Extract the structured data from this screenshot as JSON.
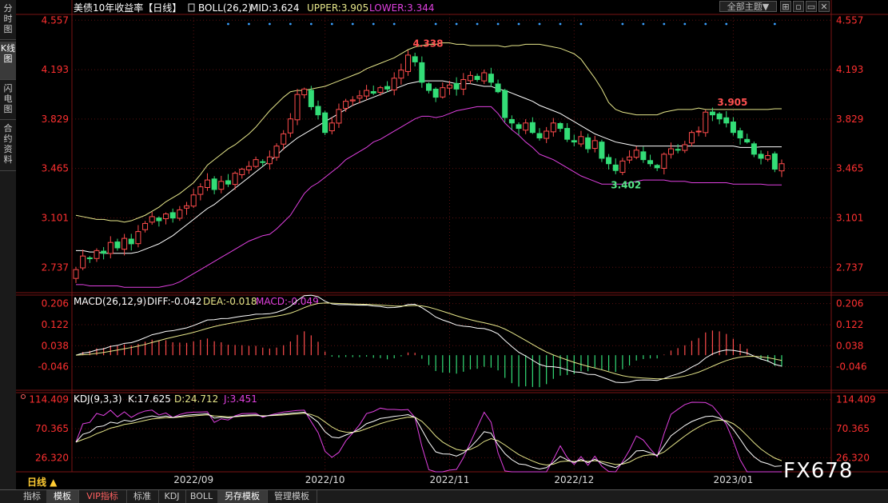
{
  "left_tabs": [
    {
      "label": "分时图"
    },
    {
      "label": "K线图"
    },
    {
      "label": "闪电图"
    },
    {
      "label": "合约资料"
    }
  ],
  "bottom_tabs": [
    {
      "label": "指标"
    },
    {
      "label": "模板"
    },
    {
      "label": "VIP指标"
    },
    {
      "label": "标准"
    },
    {
      "label": "KDJ"
    },
    {
      "label": "BOLL"
    },
    {
      "label": "另存模板"
    },
    {
      "label": "管理模板"
    }
  ],
  "period_label": "日线 ▲",
  "theme_button": "全部主题▼",
  "watermark": "FX678",
  "colors": {
    "up": "#ff4c4c",
    "down": "#33dd77",
    "upper": "#e6e68a",
    "mid": "#ffffff",
    "lower": "#e040e0",
    "macd_dea": "#e6e68a",
    "kdj_k": "#ffffff",
    "kdj_d": "#e6e68a",
    "kdj_j": "#e040e0",
    "axis": "#ff3030",
    "grid": "#5a1010"
  },
  "chart_data": {
    "type": "candlestick",
    "main": {
      "title": "美债10年收益率【日线】",
      "indicator": "BOLL(26,2)",
      "mid_label": "MID:3.624",
      "upper_label": "UPPER:3.905",
      "lower_label": "LOWER:3.344",
      "ylim": [
        2.55,
        4.6
      ],
      "ticks": [
        "4.557",
        "4.193",
        "3.829",
        "3.465",
        "3.101",
        "2.737"
      ],
      "annotations": {
        "high": "4.338",
        "high_idx": 48,
        "peak2": "3.905",
        "peak2_idx": 92,
        "low": "3.402",
        "low_idx": 78
      },
      "x_labels": [
        {
          "label": "2022/09",
          "idx": 17
        },
        {
          "label": "2022/10",
          "idx": 36
        },
        {
          "label": "2022/11",
          "idx": 54
        },
        {
          "label": "2022/12",
          "idx": 72
        },
        {
          "label": "2023/01",
          "idx": 95
        }
      ],
      "closes": [
        2.72,
        2.82,
        2.8,
        2.86,
        2.84,
        2.92,
        2.88,
        2.95,
        2.91,
        3.0,
        3.06,
        3.11,
        3.08,
        3.13,
        3.1,
        3.16,
        3.19,
        3.27,
        3.33,
        3.38,
        3.31,
        3.37,
        3.35,
        3.43,
        3.46,
        3.48,
        3.53,
        3.51,
        3.55,
        3.63,
        3.72,
        3.83,
        4.01,
        4.05,
        3.92,
        3.86,
        3.73,
        3.8,
        3.9,
        3.96,
        3.97,
        4.0,
        4.04,
        4.02,
        4.06,
        4.05,
        4.13,
        4.19,
        4.3,
        4.25,
        4.1,
        4.04,
        3.99,
        4.06,
        4.08,
        4.05,
        4.12,
        4.15,
        4.12,
        4.17,
        4.1,
        4.03,
        3.84,
        3.8,
        3.76,
        3.8,
        3.73,
        3.69,
        3.74,
        3.8,
        3.76,
        3.68,
        3.66,
        3.7,
        3.61,
        3.67,
        3.54,
        3.5,
        3.45,
        3.52,
        3.55,
        3.6,
        3.53,
        3.5,
        3.47,
        3.57,
        3.61,
        3.6,
        3.64,
        3.73,
        3.74,
        3.88,
        3.86,
        3.83,
        3.8,
        3.73,
        3.69,
        3.66,
        3.57,
        3.54,
        3.56,
        3.46,
        3.5
      ],
      "upper": [
        3.12,
        3.11,
        3.1,
        3.09,
        3.09,
        3.08,
        3.08,
        3.07,
        3.08,
        3.1,
        3.12,
        3.15,
        3.18,
        3.22,
        3.25,
        3.28,
        3.32,
        3.36,
        3.42,
        3.49,
        3.53,
        3.57,
        3.61,
        3.64,
        3.68,
        3.72,
        3.77,
        3.83,
        3.89,
        3.94,
        3.99,
        4.03,
        4.04,
        4.04,
        4.05,
        4.06,
        4.07,
        4.09,
        4.11,
        4.13,
        4.15,
        4.17,
        4.2,
        4.22,
        4.24,
        4.26,
        4.28,
        4.31,
        4.34,
        4.36,
        4.37,
        4.38,
        4.38,
        4.39,
        4.39,
        4.38,
        4.38,
        4.37,
        4.37,
        4.37,
        4.37,
        4.37,
        4.36,
        4.37,
        4.37,
        4.38,
        4.38,
        4.38,
        4.37,
        4.36,
        4.35,
        4.33,
        4.31,
        4.27,
        4.2,
        4.13,
        4.05,
        3.95,
        3.9,
        3.88,
        3.87,
        3.86,
        3.86,
        3.86,
        3.86,
        3.88,
        3.89,
        3.9,
        3.9,
        3.9,
        3.91,
        3.9,
        3.9,
        3.9,
        3.9,
        3.9,
        3.9,
        3.9,
        3.9,
        3.9,
        3.9,
        3.905,
        3.905
      ],
      "mid": [
        2.86,
        2.86,
        2.85,
        2.85,
        2.84,
        2.84,
        2.84,
        2.84,
        2.84,
        2.85,
        2.87,
        2.89,
        2.91,
        2.94,
        2.97,
        3.01,
        3.05,
        3.09,
        3.13,
        3.17,
        3.2,
        3.24,
        3.28,
        3.32,
        3.36,
        3.4,
        3.44,
        3.48,
        3.52,
        3.56,
        3.61,
        3.65,
        3.69,
        3.72,
        3.75,
        3.78,
        3.81,
        3.84,
        3.87,
        3.9,
        3.93,
        3.95,
        3.97,
        3.99,
        4.01,
        4.03,
        4.05,
        4.07,
        4.09,
        4.1,
        4.11,
        4.11,
        4.11,
        4.11,
        4.1,
        4.09,
        4.09,
        4.09,
        4.08,
        4.07,
        4.07,
        4.05,
        4.04,
        4.02,
        4.0,
        3.98,
        3.96,
        3.93,
        3.91,
        3.89,
        3.87,
        3.84,
        3.81,
        3.78,
        3.75,
        3.72,
        3.7,
        3.68,
        3.66,
        3.65,
        3.64,
        3.63,
        3.63,
        3.63,
        3.63,
        3.63,
        3.63,
        3.63,
        3.63,
        3.63,
        3.63,
        3.63,
        3.63,
        3.63,
        3.63,
        3.63,
        3.62,
        3.62,
        3.62,
        3.624,
        3.624,
        3.624,
        3.624
      ],
      "lower": [
        2.61,
        2.61,
        2.6,
        2.6,
        2.6,
        2.6,
        2.6,
        2.59,
        2.59,
        2.59,
        2.59,
        2.59,
        2.59,
        2.6,
        2.61,
        2.63,
        2.66,
        2.69,
        2.72,
        2.75,
        2.78,
        2.81,
        2.84,
        2.87,
        2.9,
        2.93,
        2.95,
        2.97,
        2.98,
        3.02,
        3.07,
        3.12,
        3.2,
        3.28,
        3.33,
        3.36,
        3.4,
        3.44,
        3.48,
        3.53,
        3.56,
        3.59,
        3.62,
        3.66,
        3.68,
        3.71,
        3.74,
        3.77,
        3.8,
        3.83,
        3.85,
        3.85,
        3.84,
        3.85,
        3.87,
        3.89,
        3.9,
        3.91,
        3.92,
        3.92,
        3.92,
        3.87,
        3.8,
        3.75,
        3.71,
        3.66,
        3.62,
        3.57,
        3.55,
        3.53,
        3.5,
        3.47,
        3.44,
        3.41,
        3.39,
        3.37,
        3.35,
        3.35,
        3.35,
        3.35,
        3.36,
        3.37,
        3.38,
        3.38,
        3.38,
        3.38,
        3.37,
        3.37,
        3.37,
        3.36,
        3.36,
        3.36,
        3.36,
        3.36,
        3.36,
        3.35,
        3.35,
        3.35,
        3.35,
        3.35,
        3.344,
        3.344,
        3.344
      ]
    },
    "macd": {
      "title": "MACD(26,12,9)",
      "diff_label": "DIFF:-0.042",
      "dea_label": "DEA:-0.018",
      "macd_label": "MACD:-0.049",
      "ylim": [
        -0.14,
        0.24
      ],
      "ticks": [
        "0.206",
        "0.122",
        "0.038",
        "-0.046"
      ]
    },
    "kdj": {
      "title": "KDJ(9,3,3)",
      "k_label": "K:17.625",
      "d_label": "D:24.712",
      "j_label": "J:3.451",
      "ylim": [
        5,
        125
      ],
      "ticks": [
        "114.409",
        "70.365",
        "26.320"
      ]
    }
  }
}
